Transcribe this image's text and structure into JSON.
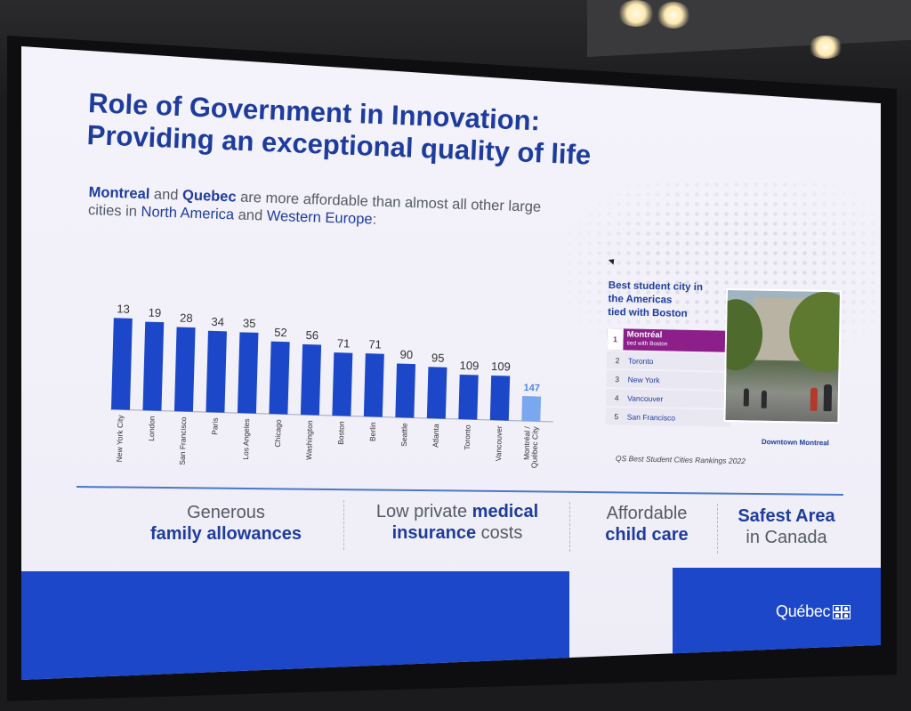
{
  "slide": {
    "title_line1": "Role of Government in Innovation:",
    "title_line2": "Providing an exceptional quality of life",
    "subtitle": {
      "city1": "Montreal",
      "and": " and ",
      "city2": "Quebec",
      "rest1": " are more affordable than almost all other large cities in ",
      "region1": "North America",
      "and2": " and ",
      "region2": "Western Europe",
      "colon": ":"
    }
  },
  "chart_data": {
    "type": "bar",
    "categories": [
      "New York City",
      "London",
      "San Francisco",
      "Paris",
      "Los Angeles",
      "Chicago",
      "Washington",
      "Boston",
      "Berlin",
      "Seattle",
      "Atlanta",
      "Toronto",
      "Vancouver",
      "Montréal / Québec City"
    ],
    "values": [
      13,
      19,
      28,
      34,
      35,
      52,
      56,
      71,
      71,
      90,
      95,
      109,
      109,
      147
    ],
    "highlight_index": 13,
    "colors": {
      "bar": "#1c47c8",
      "highlight": "#7aa7ee",
      "label": "#333333",
      "highlight_label": "#4f86e0"
    }
  },
  "ranking": {
    "heading_line1": "Best student  city in",
    "heading_line2": "the Americas",
    "heading_line3": "tied with Boston",
    "items": [
      {
        "rank": "1",
        "name": "Montréal",
        "note": "tied with Boston"
      },
      {
        "rank": "2",
        "name": "Toronto"
      },
      {
        "rank": "3",
        "name": "New York"
      },
      {
        "rank": "4",
        "name": "Vancouver"
      },
      {
        "rank": "5",
        "name": "San Francisco"
      }
    ],
    "source": "QS Best Student  Cities Rankings  2022"
  },
  "photo": {
    "caption": "Downtown Montreal"
  },
  "features": [
    {
      "line1": "Generous",
      "line2": "family allowances"
    },
    {
      "line1a": "Low private ",
      "line1b": "medical",
      "line2a": "insurance",
      "line2b": " costs"
    },
    {
      "line1": "Affordable",
      "line2": "child care"
    },
    {
      "line1": "Safest Area",
      "line2": "in Canada"
    }
  ],
  "logo": {
    "text": "Québec"
  },
  "colors": {
    "brand_blue": "#1c47c8",
    "title_blue": "#1d3c9e",
    "purple": "#8c1f8a"
  }
}
